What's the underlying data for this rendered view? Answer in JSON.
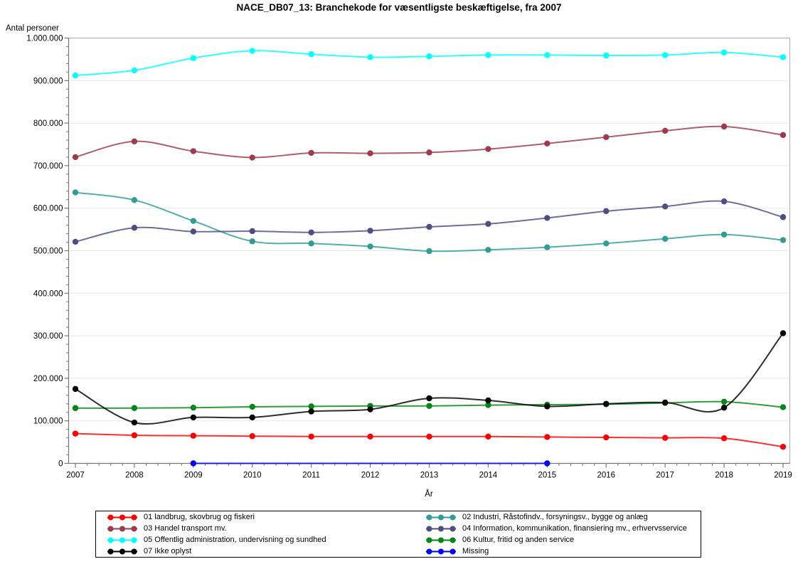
{
  "chart": {
    "title": "NACE_DB07_13: Branchekode for væsentligste beskæftigelse, fra 2007",
    "ylabel": "Antal personer",
    "xlabel": "År"
  },
  "chart_data": {
    "type": "line",
    "interpolation": "spline",
    "grid": "horizontal",
    "legend_position": "bottom",
    "x": [
      2007,
      2008,
      2009,
      2010,
      2011,
      2012,
      2013,
      2014,
      2015,
      2016,
      2017,
      2018,
      2019
    ],
    "x_tick_labels": [
      "2007",
      "2008",
      "2009",
      "2010",
      "2011",
      "2012",
      "2013",
      "2014",
      "2015",
      "2016",
      "2017",
      "2018",
      "2019"
    ],
    "ylim": [
      0,
      1000000
    ],
    "y_ticks": [
      0,
      100000,
      200000,
      300000,
      400000,
      500000,
      600000,
      700000,
      800000,
      900000,
      1000000
    ],
    "y_tick_labels": [
      "0",
      "100.000",
      "200.000",
      "300.000",
      "400.000",
      "500.000",
      "600.000",
      "700.000",
      "800.000",
      "900.000",
      "1.000.000"
    ],
    "y_minor_step": 20000,
    "x_minor_per_interval": 4,
    "series": [
      {
        "name": "01 landbrug, skovbrug og fiskeri",
        "color": "#FF0000",
        "values": [
          70000,
          66000,
          65000,
          64000,
          63000,
          63000,
          63000,
          63000,
          62000,
          61000,
          60000,
          59000,
          39000
        ]
      },
      {
        "name": "02 Industri, Råstofindv., forsyningsv., bygge og anlæg",
        "color": "#2E9E94",
        "values": [
          637000,
          619000,
          570000,
          522000,
          517000,
          510000,
          499000,
          502000,
          508000,
          517000,
          528000,
          538000,
          525000
        ]
      },
      {
        "name": "03 Handel transport mv.",
        "color": "#9E3A4C",
        "values": [
          720000,
          757000,
          734000,
          719000,
          730000,
          729000,
          731000,
          739000,
          752000,
          767000,
          782000,
          792000,
          772000
        ]
      },
      {
        "name": "04 Information, kommunikation, finansiering mv., erhvervsservice",
        "color": "#4E4E85",
        "values": [
          521000,
          554000,
          545000,
          546000,
          543000,
          547000,
          556000,
          563000,
          577000,
          593000,
          604000,
          616000,
          579000
        ]
      },
      {
        "name": "05 Offentlig administration, undervisning og sundhed",
        "color": "#00FFFF",
        "values": [
          912000,
          924000,
          953000,
          970000,
          962000,
          955000,
          957000,
          960000,
          960000,
          959000,
          960000,
          966000,
          955000
        ]
      },
      {
        "name": "06 Kultur, fritid og anden service",
        "color": "#008714",
        "values": [
          130000,
          130000,
          131000,
          133000,
          134000,
          135000,
          135000,
          137000,
          138000,
          139000,
          142000,
          145000,
          132000
        ]
      },
      {
        "name": "07 Ikke oplyst",
        "color": "#000000",
        "values": [
          175000,
          96000,
          108000,
          108000,
          122000,
          127000,
          153000,
          148000,
          134000,
          140000,
          143000,
          131000,
          306000
        ]
      },
      {
        "name": "Missing",
        "color": "#0000FF",
        "x": [
          2009,
          2015
        ],
        "values": [
          0,
          0
        ]
      }
    ],
    "colors": {
      "grid": "#E8E8E8",
      "frame": "#ADADAD",
      "axis": "#777777",
      "tick": "#777777"
    }
  }
}
